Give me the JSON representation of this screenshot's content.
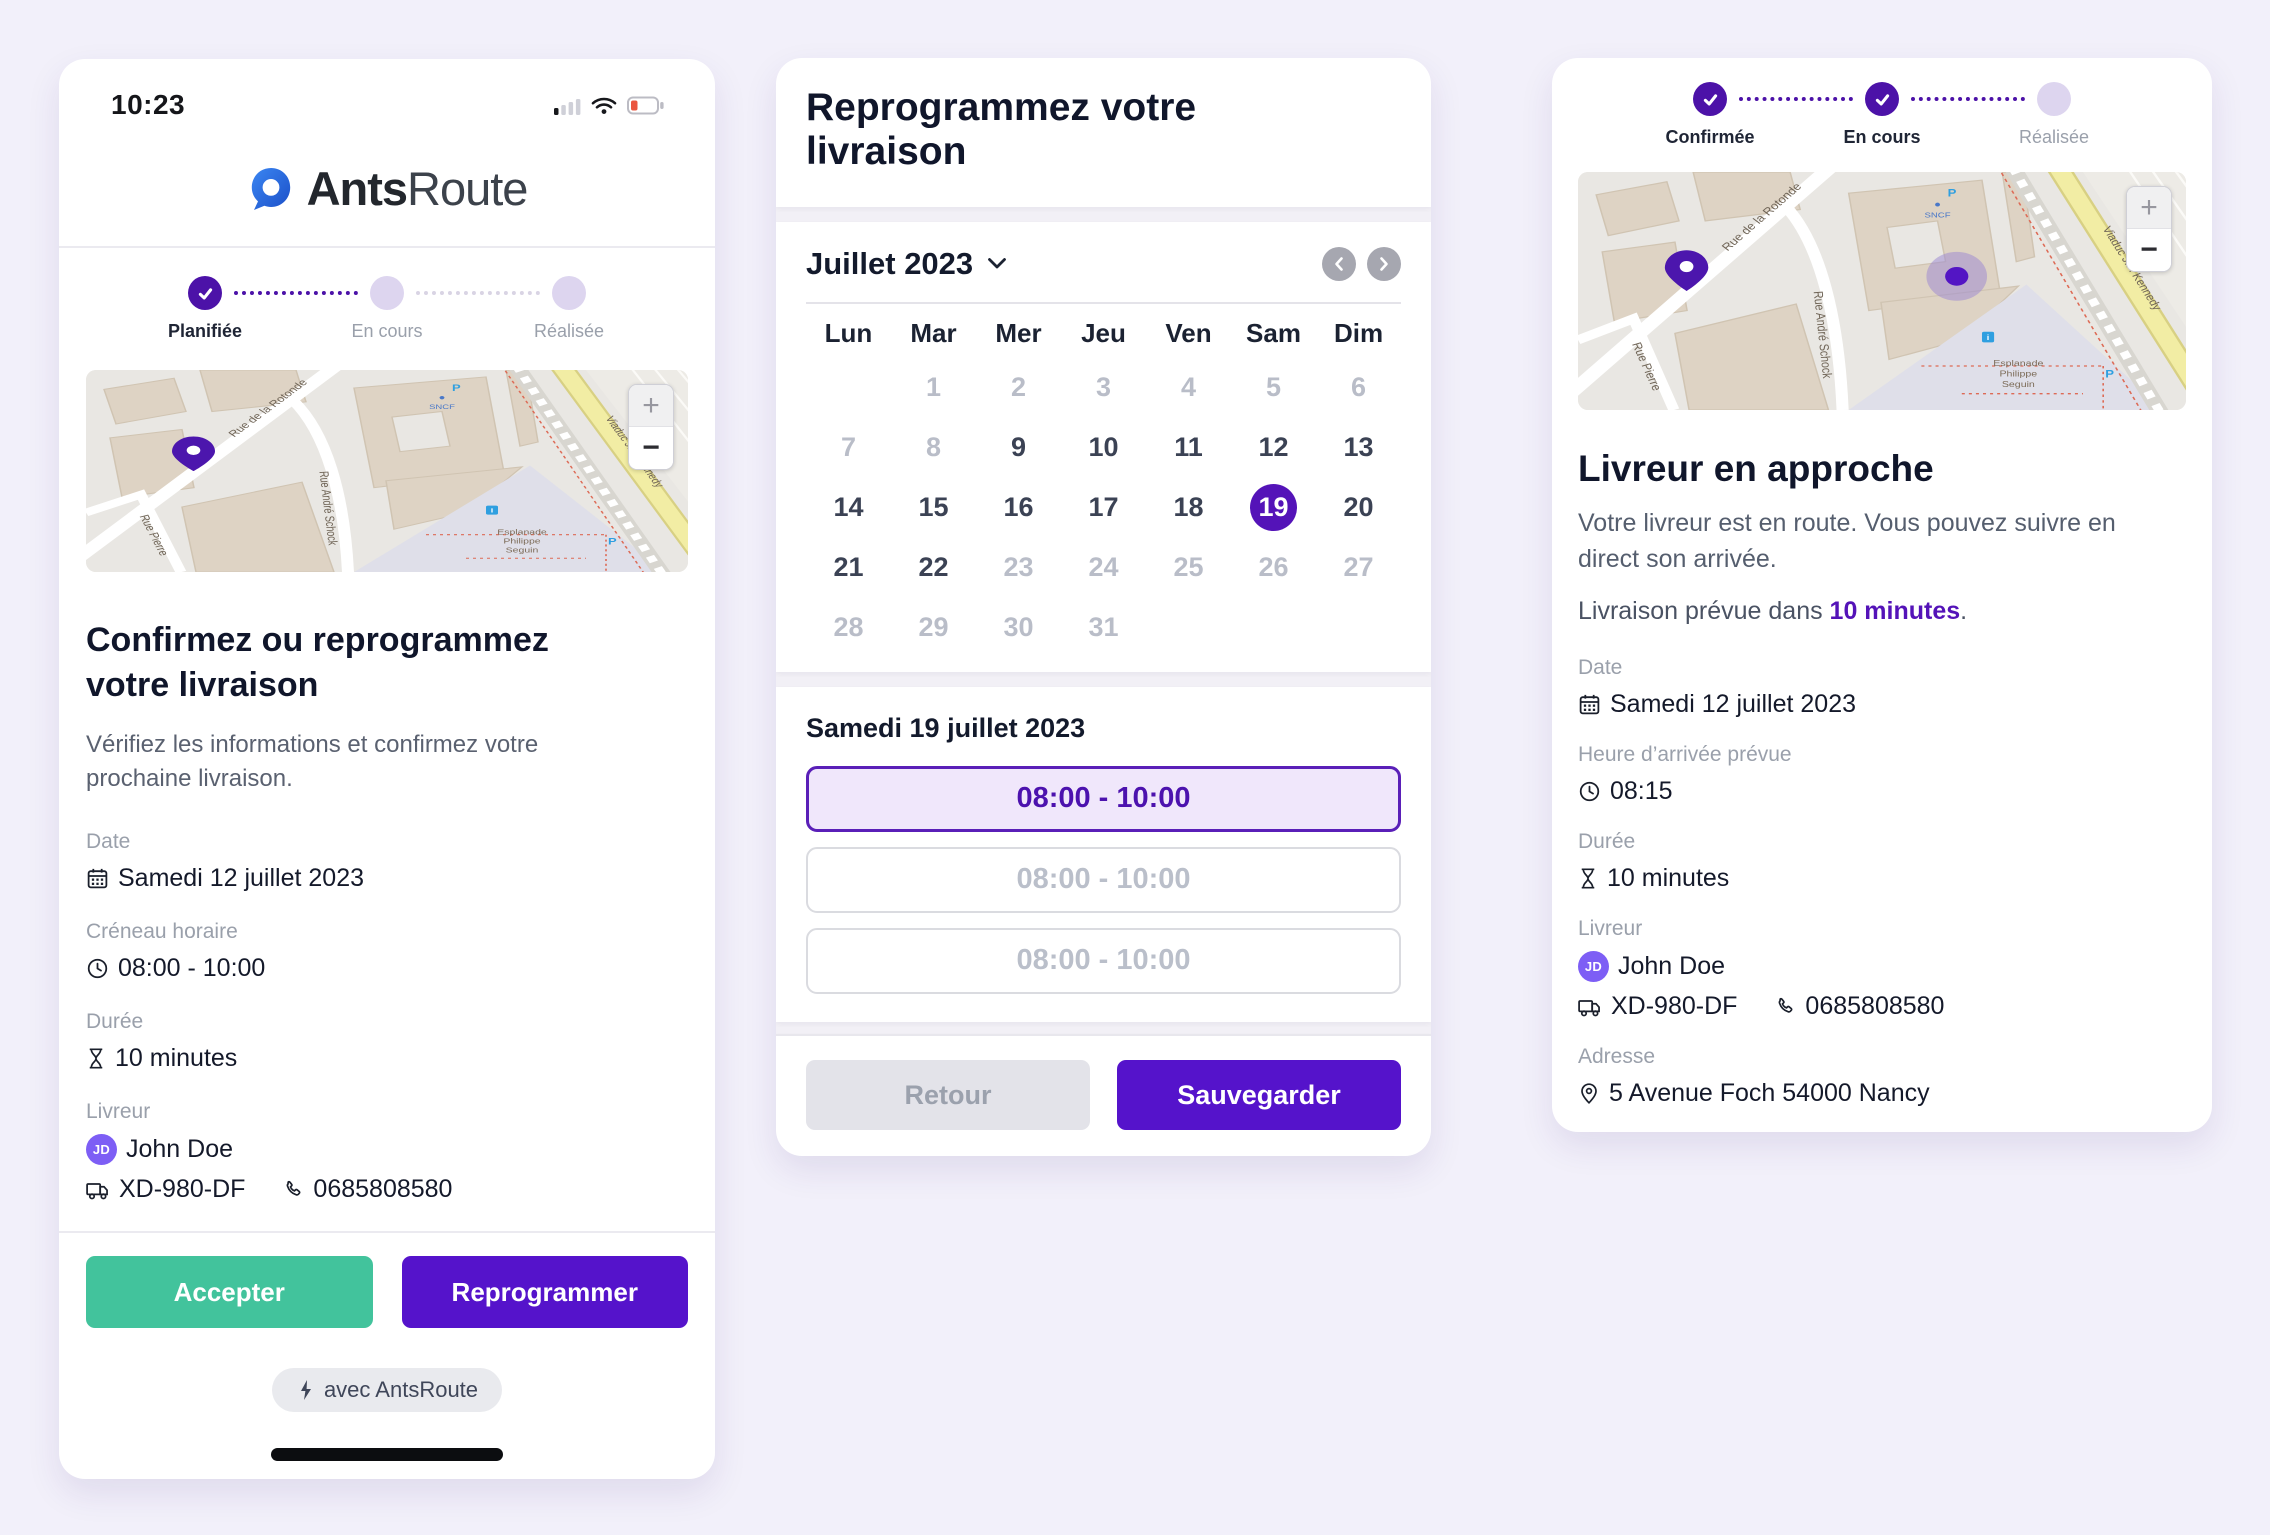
{
  "colors": {
    "page_bg": "#f2f0fa",
    "primary_purple": "#5513cb",
    "deep_purple": "#4c12a8",
    "lavender_inactive": "#ddd5ef",
    "green_accept": "#42c39c",
    "selected_slot_bg": "#f0e7fb"
  },
  "map": {
    "labels": {
      "rotonde": "Rue de la Rotonde",
      "schock": "Rue André Schock",
      "pierre": "Rue Pierre",
      "kennedy": "Viaduc J.F. Kennedy",
      "esplanade_lines": [
        "Esplanade",
        "Philippe",
        "Seguin"
      ],
      "sncf": "SNCF",
      "parking": "P",
      "info": "i"
    },
    "zoom_in": "+",
    "zoom_out": "−"
  },
  "left_card": {
    "status_bar": {
      "time": "10:23"
    },
    "logo": {
      "bold": "Ants",
      "regular": "Route"
    },
    "stepper": [
      {
        "label": "Planifiée",
        "state": "done"
      },
      {
        "label": "En cours",
        "state": "todo"
      },
      {
        "label": "Réalisée",
        "state": "todo"
      }
    ],
    "heading": "Confirmez ou reprogrammez votre livraison",
    "subheading": "Vérifiez les informations et confirmez votre prochaine livraison.",
    "details": {
      "date": {
        "label": "Date",
        "value": "Samedi 12 juillet 2023"
      },
      "slot": {
        "label": "Créneau horaire",
        "value": "08:00 - 10:00"
      },
      "duration": {
        "label": "Durée",
        "value": "10 minutes"
      },
      "courier": {
        "label": "Livreur",
        "avatar": "JD",
        "name": "John Doe",
        "vehicle": "XD-980-DF",
        "phone": "0685808580"
      }
    },
    "buttons": {
      "accept": "Accepter",
      "reschedule": "Reprogrammer"
    },
    "badge": "avec AntsRoute"
  },
  "middle_card": {
    "heading": "Reprogrammez votre livraison",
    "calendar": {
      "month": "Juillet 2023",
      "weekdays": [
        "Lun",
        "Mar",
        "Mer",
        "Jeu",
        "Ven",
        "Sam",
        "Dim"
      ],
      "weeks": [
        [
          {
            "d": "",
            "s": "empty"
          },
          {
            "d": "1",
            "s": "disabled"
          },
          {
            "d": "2",
            "s": "disabled"
          },
          {
            "d": "3",
            "s": "disabled"
          },
          {
            "d": "4",
            "s": "disabled"
          },
          {
            "d": "5",
            "s": "disabled"
          },
          {
            "d": "6",
            "s": "disabled"
          }
        ],
        [
          {
            "d": "7",
            "s": "disabled"
          },
          {
            "d": "8",
            "s": "disabled"
          },
          {
            "d": "9",
            "s": "active"
          },
          {
            "d": "10",
            "s": "active"
          },
          {
            "d": "11",
            "s": "active"
          },
          {
            "d": "12",
            "s": "active"
          },
          {
            "d": "13",
            "s": "active"
          }
        ],
        [
          {
            "d": "14",
            "s": "active"
          },
          {
            "d": "15",
            "s": "active"
          },
          {
            "d": "16",
            "s": "active"
          },
          {
            "d": "17",
            "s": "active"
          },
          {
            "d": "18",
            "s": "active"
          },
          {
            "d": "19",
            "s": "selected"
          },
          {
            "d": "20",
            "s": "active"
          }
        ],
        [
          {
            "d": "21",
            "s": "active"
          },
          {
            "d": "22",
            "s": "active"
          },
          {
            "d": "23",
            "s": "disabled"
          },
          {
            "d": "24",
            "s": "disabled"
          },
          {
            "d": "25",
            "s": "disabled"
          },
          {
            "d": "26",
            "s": "disabled"
          },
          {
            "d": "27",
            "s": "disabled"
          }
        ],
        [
          {
            "d": "28",
            "s": "disabled"
          },
          {
            "d": "29",
            "s": "disabled"
          },
          {
            "d": "30",
            "s": "disabled"
          },
          {
            "d": "31",
            "s": "disabled"
          },
          {
            "d": "",
            "s": "empty"
          },
          {
            "d": "",
            "s": "empty"
          },
          {
            "d": "",
            "s": "empty"
          }
        ]
      ]
    },
    "selected_date_heading": "Samedi 19 juillet 2023",
    "slots": [
      {
        "label": "08:00 - 10:00",
        "selected": true
      },
      {
        "label": "08:00 - 10:00",
        "selected": false
      },
      {
        "label": "08:00 - 10:00",
        "selected": false
      }
    ],
    "buttons": {
      "back": "Retour",
      "save": "Sauvegarder"
    }
  },
  "right_card": {
    "stepper": [
      {
        "label": "Confirmée",
        "state": "done"
      },
      {
        "label": "En cours",
        "state": "done"
      },
      {
        "label": "Réalisée",
        "state": "todo"
      }
    ],
    "heading": "Livreur en approche",
    "subheading": "Votre livreur est en route. Vous pouvez suivre en direct son arrivée.",
    "eta_prefix": "Livraison prévue dans ",
    "eta_highlight": "10 minutes",
    "eta_suffix": ".",
    "details": {
      "date": {
        "label": "Date",
        "value": "Samedi 12 juillet 2023"
      },
      "arrival": {
        "label": "Heure d’arrivée prévue",
        "value": "08:15"
      },
      "duration": {
        "label": "Durée",
        "value": "10 minutes"
      },
      "courier": {
        "label": "Livreur",
        "avatar": "JD",
        "name": "John Doe",
        "vehicle": "XD-980-DF",
        "phone": "0685808580"
      },
      "address": {
        "label": "Adresse",
        "value": "5 Avenue Foch 54000 Nancy"
      }
    }
  }
}
